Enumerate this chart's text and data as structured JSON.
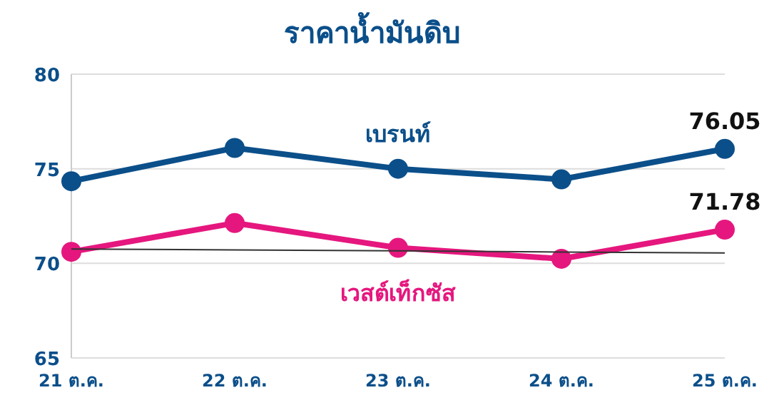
{
  "chart_data": {
    "type": "line",
    "title": "ราคาน้ำมันดิบ",
    "categories": [
      "21 ต.ค.",
      "22 ต.ค.",
      "23 ต.ค.",
      "24 ต.ค.",
      "25 ต.ค."
    ],
    "series": [
      {
        "name": "เบรนท์",
        "color": "#0b4f8a",
        "values": [
          74.34,
          76.1,
          75.0,
          74.44,
          76.05
        ],
        "value_labels": [
          null,
          null,
          null,
          null,
          "76.05"
        ],
        "marker": "circle"
      },
      {
        "name": "เวสต์เท็กซัส",
        "color": "#e5177e",
        "values": [
          70.61,
          72.13,
          70.82,
          70.24,
          71.78
        ],
        "value_labels": [
          null,
          null,
          null,
          null,
          "71.78"
        ],
        "marker": "circle"
      },
      {
        "type": "line",
        "color": "#333333",
        "values": [
          70.76,
          70.71,
          70.66,
          70.6,
          70.55
        ],
        "marker": "none"
      }
    ],
    "ylim": [
      65,
      80
    ],
    "yticks": [
      65,
      70,
      75,
      80
    ],
    "grid": "y"
  }
}
